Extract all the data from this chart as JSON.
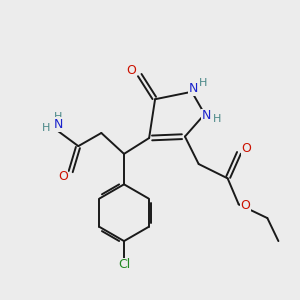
{
  "background_color": "#ececec",
  "fig_size": [
    3.0,
    3.0
  ],
  "dpi": 100,
  "bond_color": "#1a1a1a",
  "bond_width": 1.4,
  "atom_colors": {
    "N": "#1a22cc",
    "O": "#cc1100",
    "Cl": "#228822",
    "C": "#1a1a1a",
    "H": "#4a8888"
  }
}
